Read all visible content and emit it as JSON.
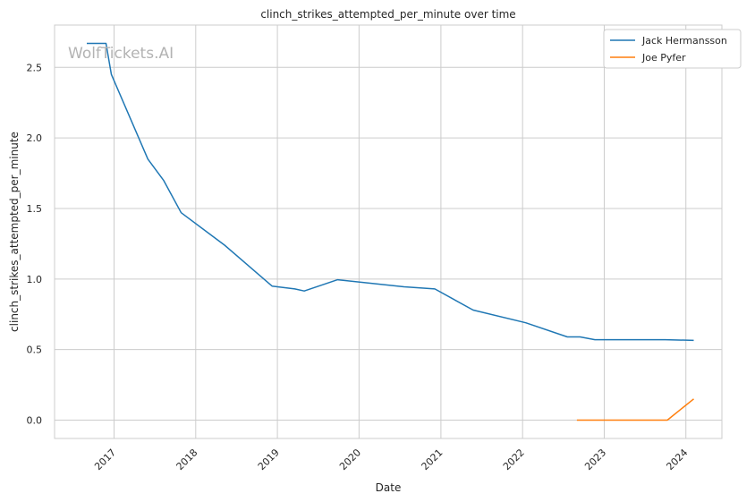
{
  "chart_data": {
    "type": "line",
    "title": "clinch_strikes_attempted_per_minute over time",
    "xlabel": "Date",
    "ylabel": "clinch_strikes_attempted_per_minute",
    "watermark": "WolfTickets.AI",
    "x_axis": "date",
    "xlim": [
      "2016-04-10",
      "2024-06-10"
    ],
    "ylim": [
      -0.13,
      2.8
    ],
    "x_ticks": [
      "2017",
      "2018",
      "2019",
      "2020",
      "2021",
      "2022",
      "2023",
      "2024"
    ],
    "y_ticks": [
      "0.0",
      "0.5",
      "1.0",
      "1.5",
      "2.0",
      "2.5"
    ],
    "grid": true,
    "legend_position": "top-right",
    "series": [
      {
        "name": "Jack Hermansson",
        "color": "#1f77b4",
        "points": [
          [
            "2016-09-01",
            2.67
          ],
          [
            "2016-11-26",
            2.67
          ],
          [
            "2016-12-20",
            2.45
          ],
          [
            "2017-06-01",
            1.85
          ],
          [
            "2017-08-10",
            1.7
          ],
          [
            "2017-10-28",
            1.47
          ],
          [
            "2018-05-10",
            1.24
          ],
          [
            "2018-12-08",
            0.95
          ],
          [
            "2019-03-20",
            0.93
          ],
          [
            "2019-05-01",
            0.915
          ],
          [
            "2019-09-27",
            0.995
          ],
          [
            "2020-07-20",
            0.945
          ],
          [
            "2020-12-05",
            0.93
          ],
          [
            "2021-05-25",
            0.78
          ],
          [
            "2022-01-15",
            0.69
          ],
          [
            "2022-07-20",
            0.59
          ],
          [
            "2022-09-15",
            0.59
          ],
          [
            "2022-11-20",
            0.57
          ],
          [
            "2023-10-01",
            0.57
          ],
          [
            "2024-02-05",
            0.565
          ]
        ]
      },
      {
        "name": "Joe Pyfer",
        "color": "#ff7f0e",
        "points": [
          [
            "2022-09-01",
            0.0
          ],
          [
            "2023-10-10",
            0.0
          ],
          [
            "2024-02-05",
            0.15
          ]
        ]
      }
    ]
  }
}
